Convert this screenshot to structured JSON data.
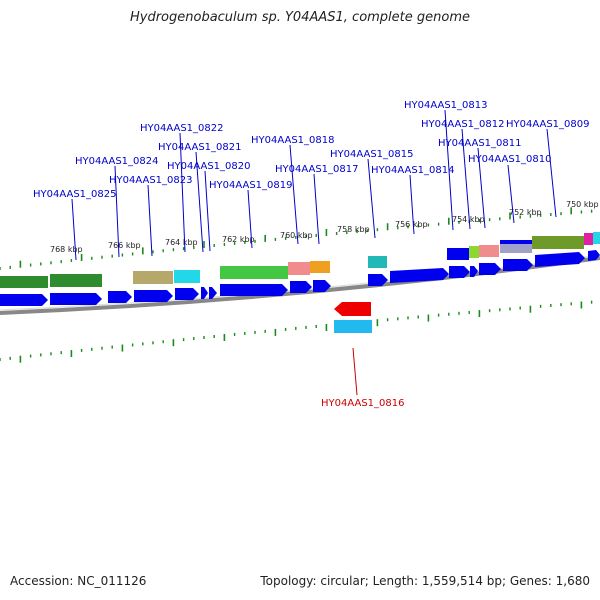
{
  "title": "Hydrogenobaculum sp. Y04AAS1, complete genome",
  "footer": {
    "accession": "Accession: NC_011126",
    "topology": "Topology: circular; Length: 1,559,514 bp; Genes: 1,680"
  },
  "colors": {
    "forward_gene": "#0000ee",
    "reverse_gene": "#ee0000",
    "forward_label": "#0000cc",
    "reverse_label": "#cc0000",
    "tick": "#1a8a1a",
    "backbone": "#888888"
  },
  "kbp_ticks": [
    "768 kbp",
    "766 kbp",
    "764 kbp",
    "762 kbp",
    "760 kbp",
    "758 kbp",
    "756 kbp",
    "754 kbp",
    "752 kbp",
    "750 kbp"
  ],
  "genes": [
    {
      "locus": "HY04AAS1_0825",
      "strand": "+"
    },
    {
      "locus": "HY04AAS1_0824",
      "strand": "+"
    },
    {
      "locus": "HY04AAS1_0823",
      "strand": "+"
    },
    {
      "locus": "HY04AAS1_0822",
      "strand": "+"
    },
    {
      "locus": "HY04AAS1_0821",
      "strand": "+"
    },
    {
      "locus": "HY04AAS1_0820",
      "strand": "+"
    },
    {
      "locus": "HY04AAS1_0819",
      "strand": "+"
    },
    {
      "locus": "HY04AAS1_0818",
      "strand": "+"
    },
    {
      "locus": "HY04AAS1_0817",
      "strand": "+"
    },
    {
      "locus": "HY04AAS1_0816",
      "strand": "-"
    },
    {
      "locus": "HY04AAS1_0815",
      "strand": "+"
    },
    {
      "locus": "HY04AAS1_0814",
      "strand": "+"
    },
    {
      "locus": "HY04AAS1_0813",
      "strand": "+"
    },
    {
      "locus": "HY04AAS1_0812",
      "strand": "+"
    },
    {
      "locus": "HY04AAS1_0811",
      "strand": "+"
    },
    {
      "locus": "HY04AAS1_0810",
      "strand": "+"
    },
    {
      "locus": "HY04AAS1_0809",
      "strand": "+"
    }
  ]
}
